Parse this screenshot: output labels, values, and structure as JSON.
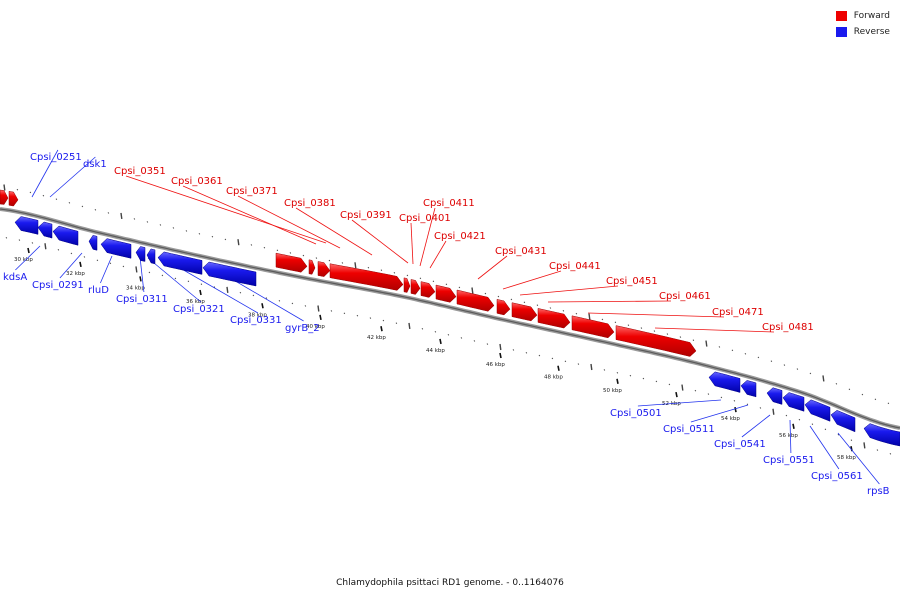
{
  "caption": "Chlamydophila psittaci RD1 genome. - 0..1164076",
  "legend": [
    {
      "label": "Forward",
      "color": "#ee0000"
    },
    {
      "label": "Reverse",
      "color": "#1a1aee"
    }
  ],
  "colors": {
    "forward": "#ee0000",
    "reverse": "#1a1aee",
    "backbone": "#888888"
  },
  "scale_labels": [
    "30 kbp",
    "32 kbp",
    "34 kbp",
    "36 kbp",
    "38 kbp",
    "40 kbp",
    "42 kbp",
    "44 kbp",
    "46 kbp",
    "48 kbp",
    "50 kbp",
    "52 kbp",
    "54 kbp",
    "56 kbp",
    "58 kbp"
  ],
  "genes": {
    "reverse": [
      "Cpsi_0251",
      "dsk1",
      "kdsA",
      "Cpsi_0291",
      "rluD",
      "Cpsi_0311",
      "Cpsi_0321",
      "Cpsi_0331",
      "gyrB_2",
      "Cpsi_0501",
      "Cpsi_0511",
      "Cpsi_0541",
      "Cpsi_0551",
      "Cpsi_0561",
      "rpsB"
    ],
    "forward": [
      "Cpsi_0351",
      "Cpsi_0361",
      "Cpsi_0371",
      "Cpsi_0381",
      "Cpsi_0391",
      "Cpsi_0401",
      "Cpsi_0411",
      "Cpsi_0421",
      "Cpsi_0431",
      "Cpsi_0441",
      "Cpsi_0451",
      "Cpsi_0461",
      "Cpsi_0471",
      "Cpsi_0481"
    ]
  }
}
